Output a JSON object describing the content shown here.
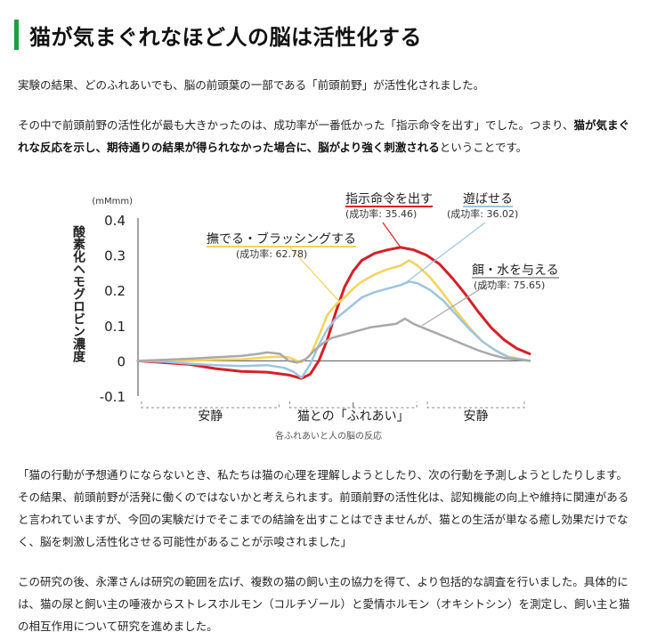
{
  "heading": {
    "title": "猫が気まぐれなほど人の脳は活性化する"
  },
  "paragraphs": {
    "p1": "実験の結果、どのふれあいでも、脳の前頭葉の一部である「前頭前野」が活性化されました。",
    "p2_a": "その中で前頭前野の活性化が最も大きかったのは、成功率が一番低かった「指示命令を出す」でした。つまり、",
    "p2_b": "猫が気まぐれな反応を示し、期待通りの結果が得られなかった場合に、脳がより強く刺激される",
    "p2_c": "ということです。",
    "p3": "「猫の行動が予想通りにならないとき、私たちは猫の心理を理解しようとしたり、次の行動を予測しようとしたりします。その結果、前頭前野が活発に働くのではないかと考えられます。前頭前野の活性化は、認知機能の向上や維持に関連があると言われていますが、今回の実験だけでそこまでの結論を出すことはできませんが、猫との生活が単なる癒し効果だけでなく、脳を刺激し活性化させる可能性があることが示唆されました」",
    "p4": "この研究の後、永澤さんは研究の範囲を広げ、複数の猫の飼い主の協力を得て、より包括的な調査を行いました。具体的には、猫の尿と飼い主の唾液からストレスホルモン（コルチゾール）と愛情ホルモン（オキシトシン）を測定し、飼い主と猫の相互作用について研究を進めました。"
  },
  "chart_caption": "各ふれあいと人の脳の反応",
  "chart_data": {
    "type": "line",
    "unit_label": "(mMmm)",
    "ylabel": "酸素化ヘモグロビン濃度",
    "ylim": [
      -0.1,
      0.4
    ],
    "yticks": [
      "0.4",
      "0.3",
      "0.2",
      "0.1",
      "0",
      "-0.1"
    ],
    "phases": [
      "安静",
      "猫との「ふれあい」",
      "安静"
    ],
    "series": [
      {
        "name": "指示命令を出す",
        "rate": "(成功率: 35.46)",
        "color": "#d61f26",
        "points": [
          [
            0,
            0
          ],
          [
            6,
            -0.005
          ],
          [
            12,
            -0.01
          ],
          [
            18,
            -0.022
          ],
          [
            24,
            -0.03
          ],
          [
            30,
            -0.032
          ],
          [
            35,
            -0.04
          ],
          [
            38,
            -0.05
          ],
          [
            40,
            -0.038
          ],
          [
            42,
            0.0
          ],
          [
            44,
            0.06
          ],
          [
            46,
            0.14
          ],
          [
            48,
            0.21
          ],
          [
            50,
            0.255
          ],
          [
            52,
            0.285
          ],
          [
            55,
            0.305
          ],
          [
            58,
            0.315
          ],
          [
            61,
            0.322
          ],
          [
            64,
            0.315
          ],
          [
            67,
            0.3
          ],
          [
            70,
            0.275
          ],
          [
            73,
            0.235
          ],
          [
            76,
            0.19
          ],
          [
            79,
            0.14
          ],
          [
            82,
            0.095
          ],
          [
            85,
            0.06
          ],
          [
            88,
            0.035
          ],
          [
            91,
            0.02
          ]
        ]
      },
      {
        "name": "撫でる・ブラッシングする",
        "rate": "(成功率: 62.78)",
        "color": "#f2d35c",
        "points": [
          [
            0,
            0
          ],
          [
            6,
            -0.002
          ],
          [
            12,
            0.0
          ],
          [
            18,
            0.003
          ],
          [
            24,
            0.004
          ],
          [
            30,
            0.01
          ],
          [
            33,
            0.012
          ],
          [
            35,
            0.01
          ],
          [
            37,
            0.0
          ],
          [
            38,
            -0.004
          ],
          [
            40,
            0.015
          ],
          [
            42,
            0.07
          ],
          [
            44,
            0.13
          ],
          [
            46,
            0.16
          ],
          [
            48,
            0.18
          ],
          [
            50,
            0.205
          ],
          [
            52,
            0.225
          ],
          [
            55,
            0.245
          ],
          [
            58,
            0.26
          ],
          [
            61,
            0.27
          ],
          [
            63,
            0.285
          ],
          [
            65,
            0.27
          ],
          [
            68,
            0.235
          ],
          [
            71,
            0.19
          ],
          [
            74,
            0.14
          ],
          [
            77,
            0.095
          ],
          [
            80,
            0.055
          ],
          [
            83,
            0.03
          ],
          [
            86,
            0.012
          ],
          [
            91,
            0.0
          ]
        ]
      },
      {
        "name": "遊ばせる",
        "rate": "(成功率: 36.02)",
        "color": "#9dc4e0",
        "points": [
          [
            0,
            0
          ],
          [
            6,
            -0.002
          ],
          [
            12,
            -0.008
          ],
          [
            18,
            -0.012
          ],
          [
            24,
            -0.015
          ],
          [
            30,
            -0.012
          ],
          [
            34,
            -0.02
          ],
          [
            36,
            -0.03
          ],
          [
            38,
            -0.048
          ],
          [
            40,
            -0.01
          ],
          [
            42,
            0.045
          ],
          [
            44,
            0.09
          ],
          [
            46,
            0.12
          ],
          [
            48,
            0.14
          ],
          [
            50,
            0.16
          ],
          [
            52,
            0.18
          ],
          [
            55,
            0.195
          ],
          [
            58,
            0.205
          ],
          [
            61,
            0.215
          ],
          [
            63,
            0.225
          ],
          [
            65,
            0.22
          ],
          [
            68,
            0.2
          ],
          [
            71,
            0.17
          ],
          [
            74,
            0.13
          ],
          [
            77,
            0.09
          ],
          [
            80,
            0.055
          ],
          [
            83,
            0.03
          ],
          [
            86,
            0.01
          ],
          [
            91,
            0.0
          ]
        ]
      },
      {
        "name": "餌・水を与える",
        "rate": "(成功率: 75.65)",
        "color": "#a9a9a9",
        "points": [
          [
            0,
            0
          ],
          [
            6,
            0.003
          ],
          [
            12,
            0.006
          ],
          [
            18,
            0.01
          ],
          [
            24,
            0.014
          ],
          [
            28,
            0.02
          ],
          [
            30,
            0.024
          ],
          [
            33,
            0.02
          ],
          [
            35,
            0.0
          ],
          [
            37,
            -0.005
          ],
          [
            39,
            0.005
          ],
          [
            41,
            0.03
          ],
          [
            43,
            0.05
          ],
          [
            45,
            0.065
          ],
          [
            48,
            0.075
          ],
          [
            51,
            0.085
          ],
          [
            54,
            0.095
          ],
          [
            57,
            0.1
          ],
          [
            60,
            0.105
          ],
          [
            62,
            0.12
          ],
          [
            64,
            0.105
          ],
          [
            67,
            0.09
          ],
          [
            70,
            0.075
          ],
          [
            73,
            0.06
          ],
          [
            76,
            0.045
          ],
          [
            79,
            0.03
          ],
          [
            82,
            0.018
          ],
          [
            85,
            0.008
          ],
          [
            91,
            0.0
          ]
        ]
      }
    ]
  }
}
